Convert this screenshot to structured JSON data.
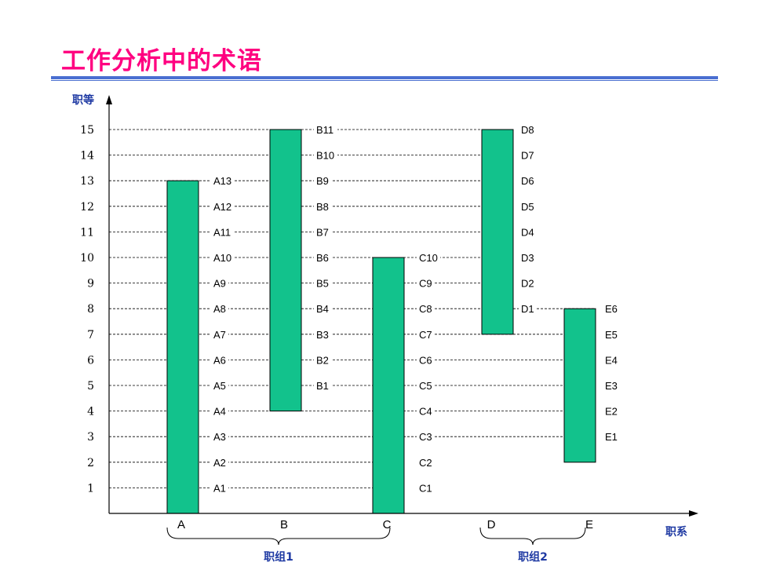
{
  "slide": {
    "title": "工作分析中的术语",
    "title_color": "#ff0080",
    "rule_color": "#4a6fd1"
  },
  "chart_data": {
    "type": "bar",
    "subtype": "floating-range",
    "title": "",
    "xlabel": "职系",
    "ylabel": "职等",
    "ylim": [
      0,
      15
    ],
    "y_ticks": [
      1,
      2,
      3,
      4,
      5,
      6,
      7,
      8,
      9,
      10,
      11,
      12,
      13,
      14,
      15
    ],
    "categories": [
      "A",
      "B",
      "C",
      "D",
      "E"
    ],
    "bar_color": "#12c28c",
    "axis_title_color": "#1f3aa3",
    "series": [
      {
        "category": "A",
        "range": [
          0,
          13
        ],
        "levels": [
          {
            "label": "A1",
            "y": 1
          },
          {
            "label": "A2",
            "y": 2
          },
          {
            "label": "A3",
            "y": 3
          },
          {
            "label": "A4",
            "y": 4
          },
          {
            "label": "A5",
            "y": 5
          },
          {
            "label": "A6",
            "y": 6
          },
          {
            "label": "A7",
            "y": 7
          },
          {
            "label": "A8",
            "y": 8
          },
          {
            "label": "A9",
            "y": 9
          },
          {
            "label": "A10",
            "y": 10
          },
          {
            "label": "A11",
            "y": 11
          },
          {
            "label": "A12",
            "y": 12
          },
          {
            "label": "A13",
            "y": 13
          }
        ]
      },
      {
        "category": "B",
        "range": [
          4,
          15
        ],
        "levels": [
          {
            "label": "B1",
            "y": 5
          },
          {
            "label": "B2",
            "y": 6
          },
          {
            "label": "B3",
            "y": 7
          },
          {
            "label": "B4",
            "y": 8
          },
          {
            "label": "B5",
            "y": 9
          },
          {
            "label": "B6",
            "y": 10
          },
          {
            "label": "B7",
            "y": 11
          },
          {
            "label": "B8",
            "y": 12
          },
          {
            "label": "B9",
            "y": 13
          },
          {
            "label": "B10",
            "y": 14
          },
          {
            "label": "B11",
            "y": 15
          }
        ]
      },
      {
        "category": "C",
        "range": [
          0,
          10
        ],
        "levels": [
          {
            "label": "C1",
            "y": 1
          },
          {
            "label": "C2",
            "y": 2
          },
          {
            "label": "C3",
            "y": 3
          },
          {
            "label": "C4",
            "y": 4
          },
          {
            "label": "C5",
            "y": 5
          },
          {
            "label": "C6",
            "y": 6
          },
          {
            "label": "C7",
            "y": 7
          },
          {
            "label": "C8",
            "y": 8
          },
          {
            "label": "C9",
            "y": 9
          },
          {
            "label": "C10",
            "y": 10
          }
        ]
      },
      {
        "category": "D",
        "range": [
          7,
          15
        ],
        "levels": [
          {
            "label": "D1",
            "y": 8
          },
          {
            "label": "D2",
            "y": 9
          },
          {
            "label": "D3",
            "y": 10
          },
          {
            "label": "D4",
            "y": 11
          },
          {
            "label": "D5",
            "y": 12
          },
          {
            "label": "D6",
            "y": 13
          },
          {
            "label": "D7",
            "y": 14
          },
          {
            "label": "D8",
            "y": 15
          }
        ]
      },
      {
        "category": "E",
        "range": [
          2,
          8
        ],
        "levels": [
          {
            "label": "E1",
            "y": 3
          },
          {
            "label": "E2",
            "y": 4
          },
          {
            "label": "E3",
            "y": 5
          },
          {
            "label": "E4",
            "y": 6
          },
          {
            "label": "E5",
            "y": 7
          },
          {
            "label": "E6",
            "y": 8
          }
        ]
      }
    ],
    "groups": [
      {
        "label": "职组1",
        "categories": [
          "A",
          "B",
          "C"
        ]
      },
      {
        "label": "职组2",
        "categories": [
          "D",
          "E"
        ]
      }
    ]
  }
}
